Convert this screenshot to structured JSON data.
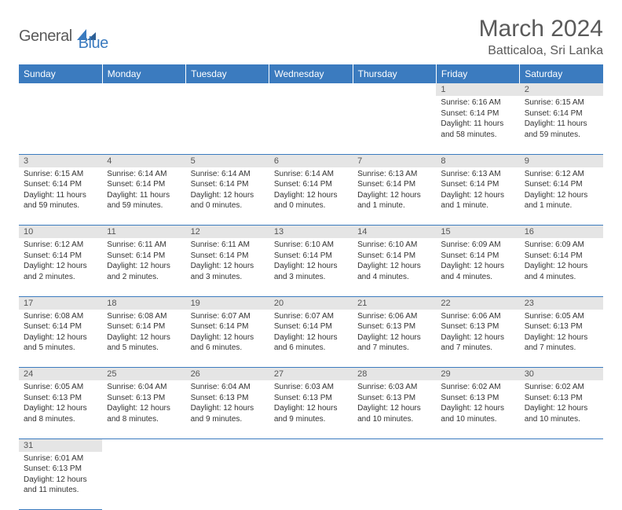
{
  "logo": {
    "text1": "General",
    "text2": "Blue"
  },
  "title": "March 2024",
  "location": "Batticaloa, Sri Lanka",
  "colors": {
    "header_bg": "#3b7bbf",
    "header_text": "#ffffff",
    "daynum_bg": "#e5e5e5",
    "border": "#3b7bbf",
    "body_text": "#333333",
    "title_text": "#5a5a5a"
  },
  "daysOfWeek": [
    "Sunday",
    "Monday",
    "Tuesday",
    "Wednesday",
    "Thursday",
    "Friday",
    "Saturday"
  ],
  "weeks": [
    [
      null,
      null,
      null,
      null,
      null,
      {
        "n": "1",
        "sr": "Sunrise: 6:16 AM",
        "ss": "Sunset: 6:14 PM",
        "dl": "Daylight: 11 hours and 58 minutes."
      },
      {
        "n": "2",
        "sr": "Sunrise: 6:15 AM",
        "ss": "Sunset: 6:14 PM",
        "dl": "Daylight: 11 hours and 59 minutes."
      }
    ],
    [
      {
        "n": "3",
        "sr": "Sunrise: 6:15 AM",
        "ss": "Sunset: 6:14 PM",
        "dl": "Daylight: 11 hours and 59 minutes."
      },
      {
        "n": "4",
        "sr": "Sunrise: 6:14 AM",
        "ss": "Sunset: 6:14 PM",
        "dl": "Daylight: 11 hours and 59 minutes."
      },
      {
        "n": "5",
        "sr": "Sunrise: 6:14 AM",
        "ss": "Sunset: 6:14 PM",
        "dl": "Daylight: 12 hours and 0 minutes."
      },
      {
        "n": "6",
        "sr": "Sunrise: 6:14 AM",
        "ss": "Sunset: 6:14 PM",
        "dl": "Daylight: 12 hours and 0 minutes."
      },
      {
        "n": "7",
        "sr": "Sunrise: 6:13 AM",
        "ss": "Sunset: 6:14 PM",
        "dl": "Daylight: 12 hours and 1 minute."
      },
      {
        "n": "8",
        "sr": "Sunrise: 6:13 AM",
        "ss": "Sunset: 6:14 PM",
        "dl": "Daylight: 12 hours and 1 minute."
      },
      {
        "n": "9",
        "sr": "Sunrise: 6:12 AM",
        "ss": "Sunset: 6:14 PM",
        "dl": "Daylight: 12 hours and 1 minute."
      }
    ],
    [
      {
        "n": "10",
        "sr": "Sunrise: 6:12 AM",
        "ss": "Sunset: 6:14 PM",
        "dl": "Daylight: 12 hours and 2 minutes."
      },
      {
        "n": "11",
        "sr": "Sunrise: 6:11 AM",
        "ss": "Sunset: 6:14 PM",
        "dl": "Daylight: 12 hours and 2 minutes."
      },
      {
        "n": "12",
        "sr": "Sunrise: 6:11 AM",
        "ss": "Sunset: 6:14 PM",
        "dl": "Daylight: 12 hours and 3 minutes."
      },
      {
        "n": "13",
        "sr": "Sunrise: 6:10 AM",
        "ss": "Sunset: 6:14 PM",
        "dl": "Daylight: 12 hours and 3 minutes."
      },
      {
        "n": "14",
        "sr": "Sunrise: 6:10 AM",
        "ss": "Sunset: 6:14 PM",
        "dl": "Daylight: 12 hours and 4 minutes."
      },
      {
        "n": "15",
        "sr": "Sunrise: 6:09 AM",
        "ss": "Sunset: 6:14 PM",
        "dl": "Daylight: 12 hours and 4 minutes."
      },
      {
        "n": "16",
        "sr": "Sunrise: 6:09 AM",
        "ss": "Sunset: 6:14 PM",
        "dl": "Daylight: 12 hours and 4 minutes."
      }
    ],
    [
      {
        "n": "17",
        "sr": "Sunrise: 6:08 AM",
        "ss": "Sunset: 6:14 PM",
        "dl": "Daylight: 12 hours and 5 minutes."
      },
      {
        "n": "18",
        "sr": "Sunrise: 6:08 AM",
        "ss": "Sunset: 6:14 PM",
        "dl": "Daylight: 12 hours and 5 minutes."
      },
      {
        "n": "19",
        "sr": "Sunrise: 6:07 AM",
        "ss": "Sunset: 6:14 PM",
        "dl": "Daylight: 12 hours and 6 minutes."
      },
      {
        "n": "20",
        "sr": "Sunrise: 6:07 AM",
        "ss": "Sunset: 6:14 PM",
        "dl": "Daylight: 12 hours and 6 minutes."
      },
      {
        "n": "21",
        "sr": "Sunrise: 6:06 AM",
        "ss": "Sunset: 6:13 PM",
        "dl": "Daylight: 12 hours and 7 minutes."
      },
      {
        "n": "22",
        "sr": "Sunrise: 6:06 AM",
        "ss": "Sunset: 6:13 PM",
        "dl": "Daylight: 12 hours and 7 minutes."
      },
      {
        "n": "23",
        "sr": "Sunrise: 6:05 AM",
        "ss": "Sunset: 6:13 PM",
        "dl": "Daylight: 12 hours and 7 minutes."
      }
    ],
    [
      {
        "n": "24",
        "sr": "Sunrise: 6:05 AM",
        "ss": "Sunset: 6:13 PM",
        "dl": "Daylight: 12 hours and 8 minutes."
      },
      {
        "n": "25",
        "sr": "Sunrise: 6:04 AM",
        "ss": "Sunset: 6:13 PM",
        "dl": "Daylight: 12 hours and 8 minutes."
      },
      {
        "n": "26",
        "sr": "Sunrise: 6:04 AM",
        "ss": "Sunset: 6:13 PM",
        "dl": "Daylight: 12 hours and 9 minutes."
      },
      {
        "n": "27",
        "sr": "Sunrise: 6:03 AM",
        "ss": "Sunset: 6:13 PM",
        "dl": "Daylight: 12 hours and 9 minutes."
      },
      {
        "n": "28",
        "sr": "Sunrise: 6:03 AM",
        "ss": "Sunset: 6:13 PM",
        "dl": "Daylight: 12 hours and 10 minutes."
      },
      {
        "n": "29",
        "sr": "Sunrise: 6:02 AM",
        "ss": "Sunset: 6:13 PM",
        "dl": "Daylight: 12 hours and 10 minutes."
      },
      {
        "n": "30",
        "sr": "Sunrise: 6:02 AM",
        "ss": "Sunset: 6:13 PM",
        "dl": "Daylight: 12 hours and 10 minutes."
      }
    ],
    [
      {
        "n": "31",
        "sr": "Sunrise: 6:01 AM",
        "ss": "Sunset: 6:13 PM",
        "dl": "Daylight: 12 hours and 11 minutes."
      },
      null,
      null,
      null,
      null,
      null,
      null
    ]
  ]
}
